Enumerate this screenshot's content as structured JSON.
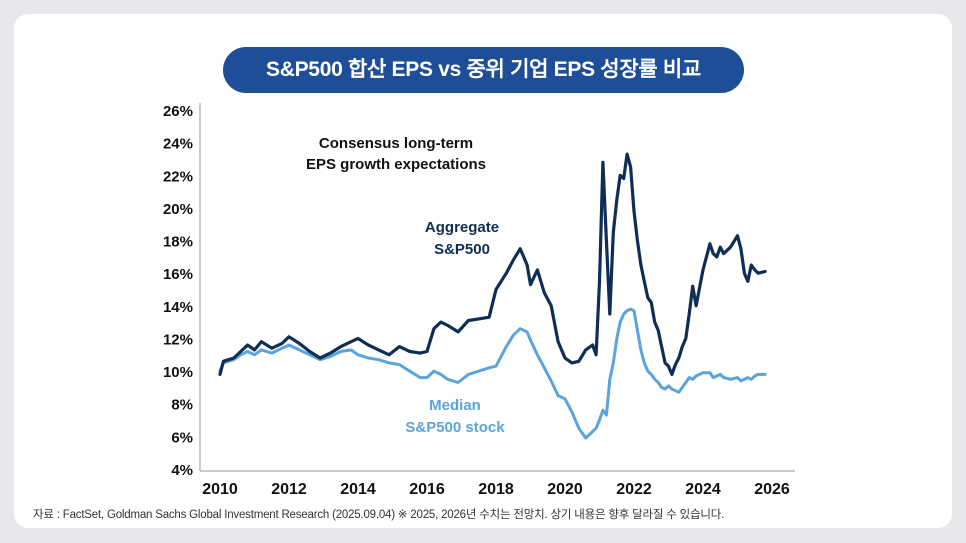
{
  "chart_data": {
    "type": "line",
    "title": "S&P500 합산 EPS vs 중위 기업 EPS 성장률 비교",
    "subtitle": "Consensus long-term EPS growth expectations",
    "subtitle_lines": [
      "Consensus long-term",
      "EPS growth expectations"
    ],
    "xlabel": "",
    "ylabel": "",
    "xlim": [
      2010,
      2026
    ],
    "ylim": [
      4,
      26
    ],
    "x_ticks": [
      2010,
      2012,
      2014,
      2016,
      2018,
      2020,
      2022,
      2024,
      2026
    ],
    "x_tick_labels": [
      "2010",
      "2012",
      "2014",
      "2016",
      "2018",
      "2020",
      "2022",
      "2024",
      "2026"
    ],
    "y_ticks": [
      4,
      6,
      8,
      10,
      12,
      14,
      16,
      18,
      20,
      22,
      24,
      26
    ],
    "y_tick_labels": [
      "4%",
      "6%",
      "8%",
      "10%",
      "12%",
      "14%",
      "16%",
      "18%",
      "20%",
      "22%",
      "24%",
      "26%"
    ],
    "grid": false,
    "series": [
      {
        "name": "Aggregate S&P500",
        "label_lines": [
          "Aggregate",
          "S&P500"
        ],
        "color": "#0f2d55",
        "x": [
          2010.0,
          2010.1,
          2010.4,
          2010.6,
          2010.8,
          2011.0,
          2011.2,
          2011.5,
          2011.8,
          2012.0,
          2012.3,
          2012.6,
          2012.9,
          2013.2,
          2013.5,
          2013.8,
          2014.0,
          2014.3,
          2014.6,
          2014.9,
          2015.2,
          2015.5,
          2015.8,
          2016.0,
          2016.2,
          2016.4,
          2016.6,
          2016.9,
          2017.2,
          2017.5,
          2017.8,
          2018.0,
          2018.3,
          2018.5,
          2018.7,
          2018.9,
          2019.0,
          2019.2,
          2019.4,
          2019.6,
          2019.8,
          2020.0,
          2020.2,
          2020.4,
          2020.6,
          2020.8,
          2020.9,
          2021.0,
          2021.1,
          2021.2,
          2021.3,
          2021.4,
          2021.5,
          2021.6,
          2021.7,
          2021.8,
          2021.9,
          2022.0,
          2022.1,
          2022.2,
          2022.3,
          2022.4,
          2022.5,
          2022.6,
          2022.7,
          2022.8,
          2022.9,
          2023.0,
          2023.1,
          2023.2,
          2023.3,
          2023.4,
          2023.5,
          2023.6,
          2023.7,
          2023.8,
          2024.0,
          2024.2,
          2024.3,
          2024.4,
          2024.5,
          2024.6,
          2024.8,
          2025.0,
          2025.1,
          2025.2,
          2025.3,
          2025.4,
          2025.5,
          2025.6,
          2025.8
        ],
        "values": [
          9.8,
          10.6,
          10.8,
          11.2,
          11.6,
          11.3,
          11.8,
          11.4,
          11.7,
          12.1,
          11.7,
          11.2,
          10.8,
          11.1,
          11.5,
          11.8,
          12.0,
          11.6,
          11.3,
          11.0,
          11.5,
          11.2,
          11.1,
          11.2,
          12.6,
          13.0,
          12.8,
          12.4,
          13.1,
          13.2,
          13.3,
          15.0,
          16.0,
          16.8,
          17.5,
          16.5,
          15.3,
          16.2,
          14.8,
          14.0,
          11.8,
          10.8,
          10.5,
          10.6,
          11.3,
          11.6,
          11.0,
          15.5,
          22.8,
          18.0,
          13.5,
          18.5,
          20.5,
          22.0,
          21.8,
          23.3,
          22.5,
          19.8,
          18.0,
          16.5,
          15.5,
          14.5,
          14.2,
          13.0,
          12.5,
          11.5,
          10.5,
          10.3,
          9.8,
          10.4,
          10.8,
          11.5,
          12.0,
          13.5,
          15.2,
          14.0,
          16.2,
          17.8,
          17.2,
          17.0,
          17.6,
          17.2,
          17.6,
          18.3,
          17.5,
          16.0,
          15.5,
          16.5,
          16.2,
          16.0,
          16.1
        ]
      },
      {
        "name": "Median S&P500 stock",
        "label_lines": [
          "Median",
          "S&P500 stock"
        ],
        "color": "#5ba3dc",
        "x": [
          2010.0,
          2010.1,
          2010.4,
          2010.6,
          2010.8,
          2011.0,
          2011.2,
          2011.5,
          2011.8,
          2012.0,
          2012.3,
          2012.6,
          2012.9,
          2013.2,
          2013.5,
          2013.8,
          2014.0,
          2014.3,
          2014.6,
          2014.9,
          2015.2,
          2015.5,
          2015.8,
          2016.0,
          2016.2,
          2016.4,
          2016.6,
          2016.9,
          2017.2,
          2017.5,
          2017.8,
          2018.0,
          2018.3,
          2018.5,
          2018.7,
          2018.9,
          2019.0,
          2019.2,
          2019.4,
          2019.6,
          2019.8,
          2020.0,
          2020.2,
          2020.4,
          2020.6,
          2020.8,
          2020.9,
          2021.0,
          2021.1,
          2021.2,
          2021.3,
          2021.4,
          2021.5,
          2021.6,
          2021.7,
          2021.8,
          2021.9,
          2022.0,
          2022.1,
          2022.2,
          2022.3,
          2022.4,
          2022.5,
          2022.6,
          2022.7,
          2022.8,
          2022.9,
          2023.0,
          2023.1,
          2023.2,
          2023.3,
          2023.4,
          2023.5,
          2023.6,
          2023.7,
          2023.8,
          2024.0,
          2024.2,
          2024.3,
          2024.4,
          2024.5,
          2024.6,
          2024.8,
          2025.0,
          2025.1,
          2025.2,
          2025.3,
          2025.4,
          2025.5,
          2025.6,
          2025.8
        ],
        "values": [
          10.0,
          10.5,
          10.7,
          11.0,
          11.2,
          11.0,
          11.3,
          11.1,
          11.4,
          11.6,
          11.3,
          11.0,
          10.7,
          10.9,
          11.2,
          11.3,
          11.0,
          10.8,
          10.7,
          10.5,
          10.4,
          10.0,
          9.6,
          9.6,
          10.0,
          9.8,
          9.5,
          9.3,
          9.8,
          10.0,
          10.2,
          10.3,
          11.5,
          12.2,
          12.6,
          12.4,
          11.9,
          11.0,
          10.2,
          9.4,
          8.5,
          8.3,
          7.5,
          6.5,
          5.9,
          6.3,
          6.5,
          7.0,
          7.6,
          7.3,
          9.5,
          10.5,
          12.0,
          13.0,
          13.5,
          13.7,
          13.8,
          13.7,
          12.5,
          11.3,
          10.5,
          10.0,
          9.8,
          9.5,
          9.3,
          9.0,
          8.9,
          9.1,
          8.9,
          8.8,
          8.7,
          9.0,
          9.3,
          9.6,
          9.5,
          9.7,
          9.9,
          9.9,
          9.6,
          9.7,
          9.8,
          9.6,
          9.5,
          9.6,
          9.4,
          9.5,
          9.6,
          9.5,
          9.7,
          9.8,
          9.8
        ]
      }
    ]
  },
  "footer": {
    "source": "자료 : FactSet, Goldman Sachs Global Investment Research (2025.09.04) ※ 2025, 2026년 수치는 전망치. 상기 내용은 향후 달라질 수 있습니다."
  }
}
